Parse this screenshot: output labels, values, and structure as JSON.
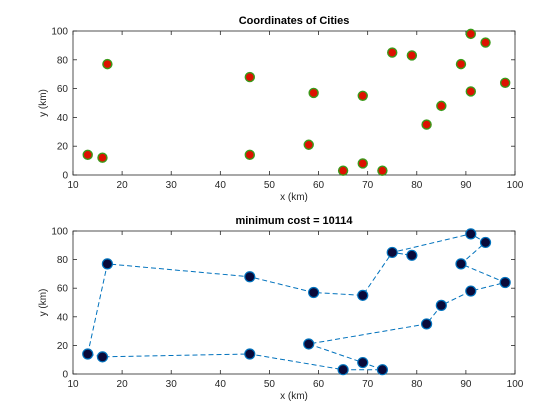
{
  "chart_data": [
    {
      "type": "scatter",
      "title": "Coordinates of Cities",
      "xlabel": "x (km)",
      "ylabel": "y (km)",
      "xlim": [
        10,
        100
      ],
      "ylim": [
        0,
        100
      ],
      "xticks": [
        10,
        20,
        30,
        40,
        50,
        60,
        70,
        80,
        90,
        100
      ],
      "yticks": [
        0,
        20,
        40,
        60,
        80,
        100
      ],
      "grid": false,
      "marker_face": "#dd1100",
      "marker_edge": "#3a9a1a",
      "points": [
        {
          "x": 13,
          "y": 14
        },
        {
          "x": 16,
          "y": 12
        },
        {
          "x": 17,
          "y": 77
        },
        {
          "x": 46,
          "y": 68
        },
        {
          "x": 46,
          "y": 14
        },
        {
          "x": 58,
          "y": 21
        },
        {
          "x": 59,
          "y": 57
        },
        {
          "x": 65,
          "y": 3
        },
        {
          "x": 69,
          "y": 55
        },
        {
          "x": 69,
          "y": 8
        },
        {
          "x": 73,
          "y": 3
        },
        {
          "x": 75,
          "y": 85
        },
        {
          "x": 79,
          "y": 83
        },
        {
          "x": 82,
          "y": 35
        },
        {
          "x": 85,
          "y": 48
        },
        {
          "x": 89,
          "y": 77
        },
        {
          "x": 91,
          "y": 98
        },
        {
          "x": 91,
          "y": 58
        },
        {
          "x": 94,
          "y": 92
        },
        {
          "x": 98,
          "y": 64
        }
      ]
    },
    {
      "type": "line",
      "title": "minimum cost = 10114",
      "xlabel": "x (km)",
      "ylabel": "y (km)",
      "xlim": [
        10,
        100
      ],
      "ylim": [
        0,
        100
      ],
      "xticks": [
        10,
        20,
        30,
        40,
        50,
        60,
        70,
        80,
        90,
        100
      ],
      "yticks": [
        0,
        20,
        40,
        60,
        80,
        100
      ],
      "grid": false,
      "line_style": "dashed",
      "line_color": "#0072bd",
      "marker_face": "#0a0a3a",
      "marker_edge": "#0072bd",
      "route": [
        {
          "x": 13,
          "y": 14
        },
        {
          "x": 17,
          "y": 77
        },
        {
          "x": 46,
          "y": 68
        },
        {
          "x": 59,
          "y": 57
        },
        {
          "x": 69,
          "y": 55
        },
        {
          "x": 75,
          "y": 85
        },
        {
          "x": 79,
          "y": 83
        },
        {
          "x": 75,
          "y": 85
        },
        {
          "x": 91,
          "y": 98
        },
        {
          "x": 94,
          "y": 92
        },
        {
          "x": 89,
          "y": 77
        },
        {
          "x": 98,
          "y": 64
        },
        {
          "x": 91,
          "y": 58
        },
        {
          "x": 85,
          "y": 48
        },
        {
          "x": 82,
          "y": 35
        },
        {
          "x": 58,
          "y": 21
        },
        {
          "x": 69,
          "y": 8
        },
        {
          "x": 73,
          "y": 3
        },
        {
          "x": 65,
          "y": 3
        },
        {
          "x": 46,
          "y": 14
        },
        {
          "x": 16,
          "y": 12
        },
        {
          "x": 13,
          "y": 14
        }
      ]
    }
  ]
}
